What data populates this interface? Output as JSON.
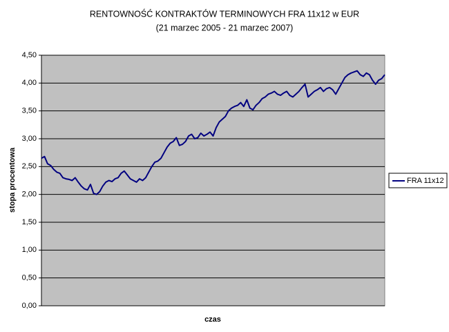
{
  "chart_data": {
    "type": "line",
    "title": "RENTOWNOŚĆ KONTRAKTÓW TERMINOWYCH FRA 11x12 w EUR",
    "subtitle": "(21 marzec 2005 - 21 marzec 2007)",
    "x_label": "czas",
    "y_label": "stopa procentowa",
    "ylim": [
      0,
      4.5
    ],
    "yticks": [
      {
        "value": 0,
        "label": "0,00"
      },
      {
        "value": 0.5,
        "label": "0,50"
      },
      {
        "value": 1,
        "label": "1,00"
      },
      {
        "value": 1.5,
        "label": "1,50"
      },
      {
        "value": 2,
        "label": "2,00"
      },
      {
        "value": 2.5,
        "label": "2,50"
      },
      {
        "value": 3,
        "label": "3,00"
      },
      {
        "value": 3.5,
        "label": "3,50"
      },
      {
        "value": 4,
        "label": "4,00"
      },
      {
        "value": 4.5,
        "label": "4,50"
      }
    ],
    "grid": true,
    "legend": "right",
    "series": [
      {
        "name": "FRA 11x12",
        "color": "#000080",
        "values": [
          2.65,
          2.68,
          2.55,
          2.52,
          2.45,
          2.4,
          2.38,
          2.3,
          2.28,
          2.27,
          2.25,
          2.3,
          2.22,
          2.15,
          2.1,
          2.08,
          2.18,
          2.02,
          2.0,
          2.05,
          2.15,
          2.22,
          2.25,
          2.23,
          2.28,
          2.3,
          2.38,
          2.42,
          2.35,
          2.28,
          2.25,
          2.22,
          2.28,
          2.25,
          2.3,
          2.4,
          2.5,
          2.58,
          2.6,
          2.65,
          2.75,
          2.85,
          2.92,
          2.95,
          3.02,
          2.88,
          2.9,
          2.95,
          3.05,
          3.08,
          3.0,
          3.02,
          3.1,
          3.05,
          3.08,
          3.12,
          3.05,
          3.2,
          3.3,
          3.35,
          3.4,
          3.5,
          3.55,
          3.58,
          3.6,
          3.65,
          3.58,
          3.7,
          3.55,
          3.52,
          3.6,
          3.65,
          3.72,
          3.75,
          3.8,
          3.82,
          3.85,
          3.8,
          3.78,
          3.82,
          3.85,
          3.78,
          3.75,
          3.8,
          3.85,
          3.92,
          3.98,
          3.75,
          3.8,
          3.85,
          3.88,
          3.92,
          3.85,
          3.9,
          3.92,
          3.88,
          3.8,
          3.9,
          4.0,
          4.1,
          4.15,
          4.18,
          4.2,
          4.22,
          4.15,
          4.12,
          4.18,
          4.15,
          4.05,
          3.98,
          4.05,
          4.08,
          4.15
        ]
      }
    ]
  }
}
